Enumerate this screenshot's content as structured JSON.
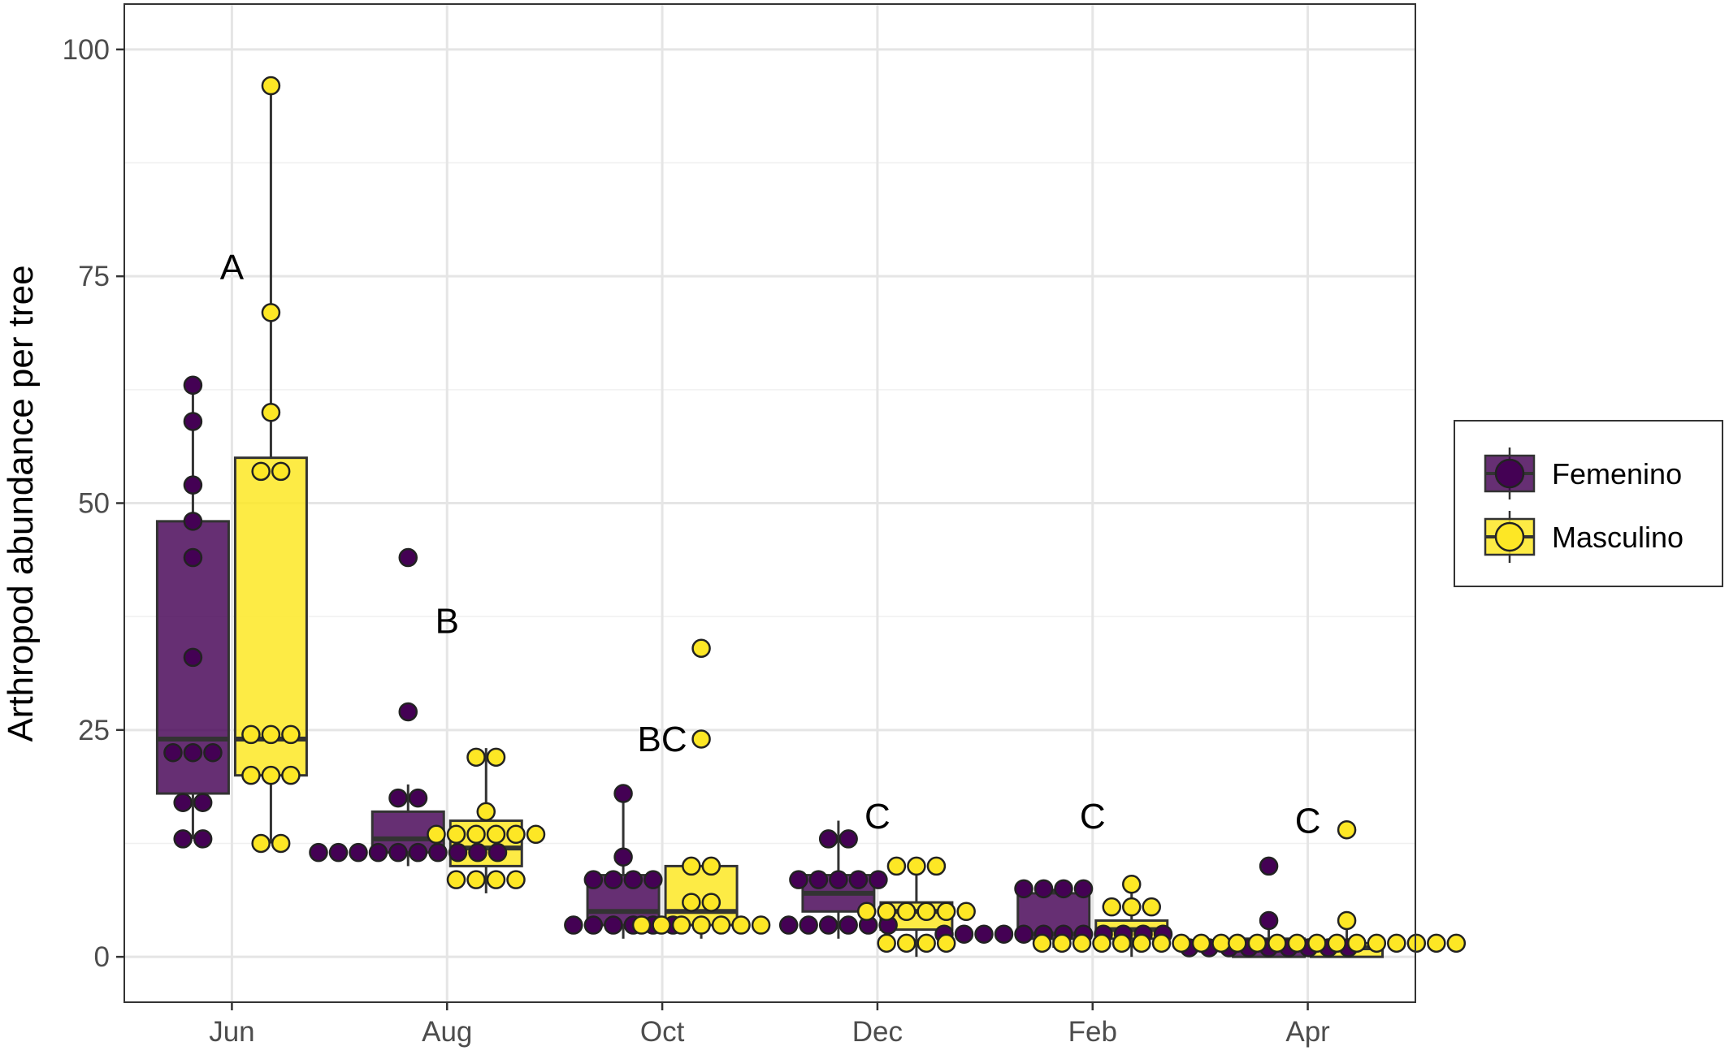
{
  "chart_data": {
    "type": "box",
    "title": "",
    "xlabel": "",
    "ylabel": "Arthropod abundance per tree",
    "ylim": [
      -5,
      105
    ],
    "yticks": [
      0,
      25,
      50,
      75,
      100
    ],
    "categories": [
      "Jun",
      "Aug",
      "Oct",
      "Dec",
      "Feb",
      "Apr"
    ],
    "grid": true,
    "legend_position": "right",
    "series": [
      {
        "name": "Femenino",
        "color": "#440154",
        "boxes": [
          {
            "category": "Jun",
            "q1": 18,
            "median": 24,
            "q3": 48,
            "min": 13,
            "max": 63,
            "points": [
              13,
              13,
              17,
              17,
              22.5,
              22.5,
              22.5,
              33,
              44,
              48,
              52,
              59,
              63
            ]
          },
          {
            "category": "Aug",
            "q1": 11.5,
            "median": 13,
            "q3": 16,
            "min": 10,
            "max": 19,
            "points": [
              11.5,
              11.5,
              11.5,
              11.5,
              11.5,
              11.5,
              11.5,
              11.5,
              11.5,
              11.5,
              17.5,
              17.5,
              27,
              44
            ]
          },
          {
            "category": "Oct",
            "q1": 3.5,
            "median": 5,
            "q3": 9,
            "min": 2,
            "max": 18,
            "points": [
              3.5,
              3.5,
              3.5,
              3.5,
              3.5,
              3.5,
              8.5,
              8.5,
              8.5,
              8.5,
              11,
              18
            ]
          },
          {
            "category": "Dec",
            "q1": 5,
            "median": 7,
            "q3": 9,
            "min": 2,
            "max": 15,
            "points": [
              3.5,
              3.5,
              3.5,
              3.5,
              3.5,
              3.5,
              8.5,
              8.5,
              8.5,
              8.5,
              8.5,
              13,
              13
            ]
          },
          {
            "category": "Feb",
            "q1": 2,
            "median": 2.5,
            "q3": 7,
            "min": 1,
            "max": 7.5,
            "points": [
              2.5,
              2.5,
              2.5,
              2.5,
              2.5,
              2.5,
              2.5,
              2.5,
              2.5,
              2.5,
              2.5,
              2.5,
              7.5,
              7.5,
              7.5,
              7.5
            ]
          },
          {
            "category": "Apr",
            "q1": 0,
            "median": 1,
            "q3": 2,
            "min": 0,
            "max": 4,
            "points": [
              1,
              1,
              1,
              1,
              1,
              1,
              1,
              1,
              1,
              4,
              10
            ]
          }
        ]
      },
      {
        "name": "Masculino",
        "color": "#fde725",
        "boxes": [
          {
            "category": "Jun",
            "q1": 20,
            "median": 24,
            "q3": 55,
            "min": 12.5,
            "max": 96,
            "points": [
              12.5,
              12.5,
              20,
              20,
              20,
              24.5,
              24.5,
              24.5,
              53.5,
              53.5,
              60,
              71,
              96
            ]
          },
          {
            "category": "Aug",
            "q1": 10,
            "median": 12,
            "q3": 15,
            "min": 7,
            "max": 23,
            "points": [
              8.5,
              8.5,
              8.5,
              8.5,
              13.5,
              13.5,
              13.5,
              13.5,
              13.5,
              13.5,
              16,
              22,
              22
            ]
          },
          {
            "category": "Oct",
            "q1": 3.5,
            "median": 5,
            "q3": 10,
            "min": 2,
            "max": 10,
            "points": [
              3.5,
              3.5,
              3.5,
              3.5,
              3.5,
              3.5,
              3.5,
              6,
              6,
              10,
              10,
              24,
              34
            ]
          },
          {
            "category": "Dec",
            "q1": 3,
            "median": 5,
            "q3": 6,
            "min": 0,
            "max": 10,
            "points": [
              1.5,
              1.5,
              1.5,
              1.5,
              5,
              5,
              5,
              5,
              5,
              5,
              10,
              10,
              10
            ]
          },
          {
            "category": "Feb",
            "q1": 2,
            "median": 3,
            "q3": 4,
            "min": 0,
            "max": 8,
            "points": [
              1.5,
              1.5,
              1.5,
              1.5,
              1.5,
              1.5,
              1.5,
              1.5,
              1.5,
              1.5,
              5.5,
              5.5,
              5.5,
              8
            ]
          },
          {
            "category": "Apr",
            "q1": 0,
            "median": 1,
            "q3": 1.5,
            "min": 0,
            "max": 4,
            "points": [
              1.5,
              1.5,
              1.5,
              1.5,
              1.5,
              1.5,
              1.5,
              1.5,
              1.5,
              1.5,
              1.5,
              1.5,
              4,
              14
            ]
          }
        ]
      }
    ],
    "annotations": [
      {
        "text": "A",
        "x": "Jun",
        "y": 76
      },
      {
        "text": "B",
        "x": "Aug",
        "y": 37
      },
      {
        "text": "BC",
        "x": "Oct",
        "y": 24
      },
      {
        "text": "C",
        "x": "Dec",
        "y": 15.5
      },
      {
        "text": "C",
        "x": "Feb",
        "y": 15.5
      },
      {
        "text": "C",
        "x": "Apr",
        "y": 15
      }
    ]
  }
}
